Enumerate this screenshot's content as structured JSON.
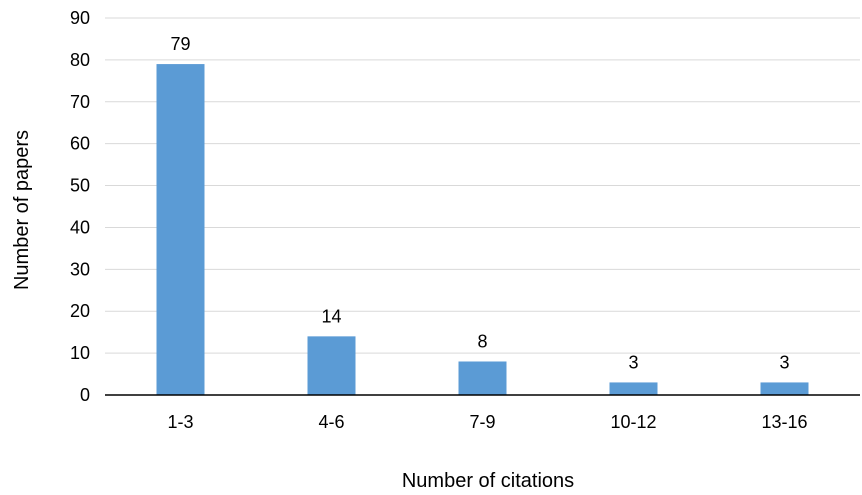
{
  "chart_data": {
    "type": "bar",
    "title": "",
    "xlabel": "Number of citations",
    "ylabel": "Number of papers",
    "categories": [
      "1-3",
      "4-6",
      "7-9",
      "10-12",
      "13-16"
    ],
    "values": [
      79,
      14,
      8,
      3,
      3
    ],
    "data_labels": [
      "79",
      "14",
      "8",
      "3",
      "3"
    ],
    "ylim": [
      0,
      90
    ],
    "yticks": [
      0,
      10,
      20,
      30,
      40,
      50,
      60,
      70,
      80,
      90
    ],
    "grid": true,
    "legend": "none",
    "bar_color": "#5b9bd5",
    "grid_color": "#d9d9d9",
    "axis_color": "#000000"
  }
}
